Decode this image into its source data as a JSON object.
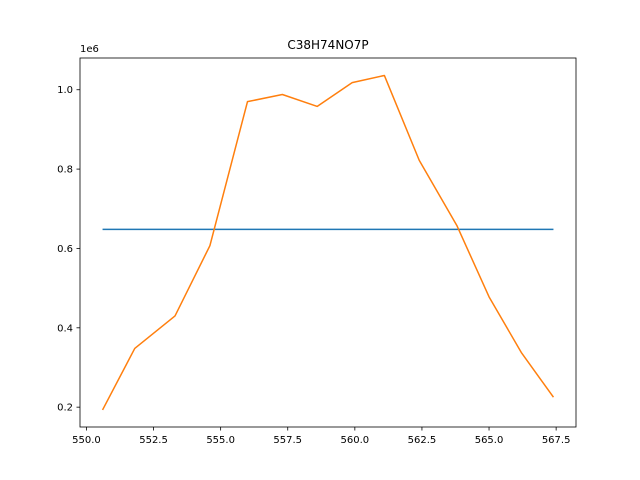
{
  "chart_data": {
    "type": "line",
    "title": "C38H74NO7P",
    "xlabel": "",
    "ylabel": "",
    "y_offset_label": "1e6",
    "xlim": [
      549.76,
      568.24
    ],
    "ylim": [
      0.15,
      1.08
    ],
    "x_ticks": [
      550.0,
      552.5,
      555.0,
      557.5,
      560.0,
      562.5,
      565.0,
      567.5
    ],
    "x_tick_labels": [
      "550.0",
      "552.5",
      "555.0",
      "557.5",
      "560.0",
      "562.5",
      "565.0",
      "567.5"
    ],
    "y_ticks": [
      0.2,
      0.4,
      0.6,
      0.8,
      1.0
    ],
    "y_tick_labels": [
      "0.2",
      "0.4",
      "0.6",
      "0.8",
      "1.0"
    ],
    "grid": false,
    "series": [
      {
        "color": "#1f77b4",
        "x": [
          550.6,
          567.4
        ],
        "y": [
          0.648,
          0.648
        ]
      },
      {
        "color": "#ff7f0e",
        "x": [
          550.6,
          551.8,
          553.3,
          554.6,
          556.0,
          557.3,
          558.6,
          559.9,
          561.1,
          562.4,
          563.8,
          565.0,
          566.2,
          567.4
        ],
        "y": [
          0.193,
          0.348,
          0.43,
          0.607,
          0.97,
          0.988,
          0.958,
          1.018,
          1.036,
          0.822,
          0.658,
          0.478,
          0.338,
          0.225
        ]
      }
    ]
  }
}
